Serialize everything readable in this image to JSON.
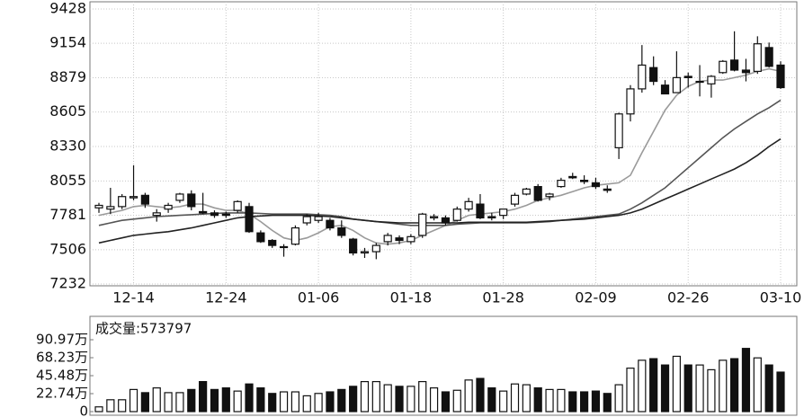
{
  "chart_data": {
    "type": "candlestick",
    "categories": [
      null,
      null,
      null,
      "12-14",
      null,
      null,
      null,
      null,
      null,
      null,
      null,
      "12-24",
      null,
      null,
      null,
      null,
      null,
      null,
      null,
      "01-06",
      null,
      null,
      null,
      null,
      null,
      null,
      null,
      "01-18",
      null,
      null,
      null,
      null,
      null,
      null,
      null,
      "01-28",
      null,
      null,
      null,
      null,
      null,
      null,
      null,
      "02-09",
      null,
      null,
      null,
      null,
      null,
      null,
      null,
      "02-26",
      null,
      null,
      null,
      null,
      null,
      null,
      null,
      "03-10"
    ],
    "open": [
      7840,
      7830,
      7850,
      7920,
      7940,
      7780,
      7830,
      7900,
      7950,
      7810,
      7800,
      7790,
      7820,
      7850,
      7640,
      7580,
      7530,
      7550,
      7720,
      7740,
      7740,
      7680,
      7590,
      7480,
      7490,
      7570,
      7600,
      7570,
      7620,
      7760,
      7760,
      7740,
      7830,
      7870,
      7770,
      7780,
      7870,
      7950,
      8010,
      7930,
      8010,
      8090,
      8060,
      8040,
      7990,
      8320,
      8590,
      8790,
      8960,
      8820,
      8760,
      8890,
      8850,
      8830,
      8920,
      9020,
      8940,
      8930,
      9120,
      8980
    ],
    "high": [
      7880,
      8000,
      7950,
      8180,
      7960,
      7830,
      7880,
      7960,
      7980,
      7960,
      7820,
      7810,
      7900,
      7880,
      7660,
      7590,
      7550,
      7700,
      7790,
      7800,
      7760,
      7740,
      7600,
      7520,
      7560,
      7640,
      7620,
      7630,
      7800,
      7790,
      7780,
      7850,
      7920,
      7950,
      7800,
      7830,
      7960,
      8000,
      8030,
      7960,
      8080,
      8120,
      8100,
      8080,
      8020,
      8600,
      8820,
      9140,
      9050,
      8860,
      9090,
      8920,
      8980,
      8900,
      9020,
      9250,
      9030,
      9210,
      9160,
      9010
    ],
    "low": [
      7800,
      7790,
      7830,
      7900,
      7840,
      7730,
      7800,
      7880,
      7820,
      7790,
      7760,
      7760,
      7800,
      7640,
      7560,
      7520,
      7450,
      7540,
      7700,
      7720,
      7660,
      7600,
      7460,
      7440,
      7430,
      7540,
      7550,
      7550,
      7600,
      7740,
      7700,
      7730,
      7810,
      7750,
      7740,
      7750,
      7850,
      7940,
      7890,
      7900,
      8000,
      8070,
      8030,
      7990,
      7960,
      8230,
      8530,
      8760,
      8820,
      8760,
      8760,
      8800,
      8730,
      8720,
      8910,
      8930,
      8850,
      8910,
      8960,
      8790
    ],
    "close": [
      7860,
      7850,
      7930,
      7930,
      7870,
      7800,
      7860,
      7950,
      7850,
      7800,
      7780,
      7780,
      7890,
      7650,
      7570,
      7540,
      7530,
      7680,
      7770,
      7770,
      7680,
      7620,
      7480,
      7490,
      7540,
      7620,
      7580,
      7610,
      7790,
      7770,
      7720,
      7830,
      7890,
      7760,
      7760,
      7830,
      7940,
      7990,
      7900,
      7950,
      8060,
      8080,
      8050,
      8010,
      7980,
      8590,
      8790,
      8980,
      8850,
      8750,
      8880,
      8880,
      8850,
      8890,
      9010,
      8940,
      8920,
      9150,
      8970,
      8800
    ],
    "moving_averages": [
      {
        "color": "#9a9a9a",
        "values": [
          7780,
          7800,
          7820,
          7850,
          7860,
          7850,
          7840,
          7850,
          7870,
          7870,
          7840,
          7820,
          7820,
          7790,
          7730,
          7660,
          7600,
          7580,
          7600,
          7640,
          7690,
          7700,
          7660,
          7600,
          7560,
          7550,
          7560,
          7580,
          7620,
          7660,
          7700,
          7740,
          7780,
          7790,
          7800,
          7810,
          7830,
          7860,
          7900,
          7920,
          7940,
          7970,
          8000,
          8020,
          8030,
          8040,
          8100,
          8280,
          8450,
          8620,
          8740,
          8810,
          8850,
          8860,
          8860,
          8880,
          8900,
          8930,
          8950,
          8930
        ]
      },
      {
        "color": "#555555",
        "values": [
          7700,
          7720,
          7740,
          7750,
          7760,
          7770,
          7775,
          7780,
          7785,
          7790,
          7795,
          7800,
          7800,
          7800,
          7795,
          7790,
          7790,
          7790,
          7790,
          7785,
          7780,
          7770,
          7750,
          7740,
          7730,
          7720,
          7710,
          7700,
          7700,
          7700,
          7700,
          7710,
          7715,
          7720,
          7720,
          7720,
          7720,
          7720,
          7725,
          7730,
          7740,
          7750,
          7760,
          7770,
          7780,
          7790,
          7830,
          7880,
          7940,
          8000,
          8080,
          8160,
          8240,
          8320,
          8400,
          8470,
          8530,
          8590,
          8640,
          8700
        ]
      },
      {
        "color": "#222222",
        "values": [
          7560,
          7580,
          7600,
          7620,
          7630,
          7640,
          7650,
          7665,
          7680,
          7700,
          7720,
          7740,
          7760,
          7770,
          7775,
          7780,
          7780,
          7780,
          7780,
          7775,
          7770,
          7760,
          7750,
          7740,
          7730,
          7725,
          7720,
          7720,
          7720,
          7720,
          7720,
          7720,
          7725,
          7725,
          7725,
          7725,
          7725,
          7725,
          7730,
          7735,
          7740,
          7745,
          7750,
          7760,
          7770,
          7780,
          7800,
          7830,
          7870,
          7910,
          7950,
          7990,
          8030,
          8070,
          8110,
          8150,
          8200,
          8260,
          8330,
          8390
        ]
      }
    ],
    "ylim": [
      7232,
      9428
    ],
    "yticks": [
      7232,
      7506,
      7781,
      8055,
      8330,
      8605,
      8879,
      9154,
      9428
    ],
    "grid": true,
    "volume": {
      "title": "成交量:573797",
      "values": [
        6,
        15,
        15,
        28,
        24,
        30,
        24,
        24,
        28,
        38,
        28,
        30,
        26,
        35,
        30,
        23,
        25,
        25,
        20,
        23,
        25,
        28,
        32,
        38,
        38,
        34,
        32,
        32,
        38,
        30,
        25,
        27,
        40,
        42,
        30,
        26,
        35,
        34,
        30,
        28,
        28,
        25,
        25,
        26,
        23,
        34,
        55,
        65,
        67,
        59,
        70,
        59,
        59,
        53,
        65,
        67,
        80,
        68,
        59,
        50
      ],
      "ylim": [
        0,
        120
      ],
      "yticks": [
        0,
        {
          "value": 22.74,
          "label": "22.74万"
        },
        {
          "value": 45.48,
          "label": "45.48万"
        },
        {
          "value": 68.23,
          "label": "68.23万"
        },
        {
          "value": 90.97,
          "label": "90.97万"
        }
      ]
    }
  }
}
